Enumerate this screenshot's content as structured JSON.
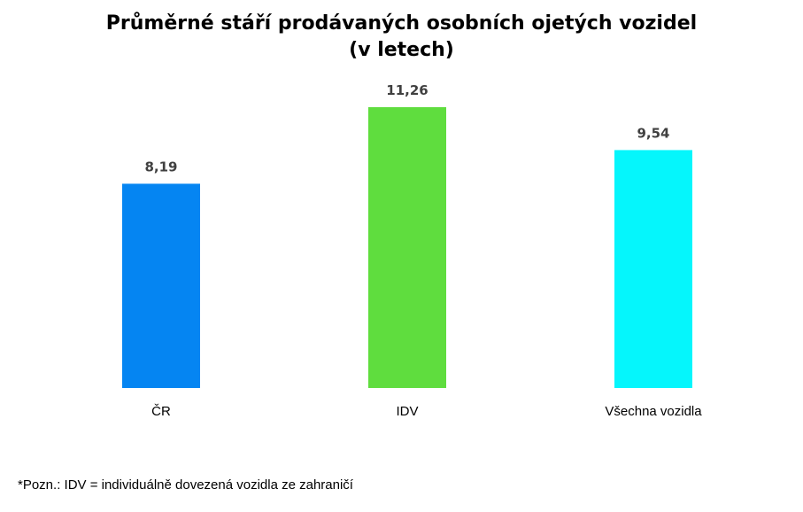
{
  "chart_data": {
    "type": "bar",
    "title": "Průměrné stáří prodávaných osobních ojetých vozidel",
    "subtitle": "(v letech)",
    "xlabel": "",
    "ylabel": "",
    "categories": [
      "ČR",
      "IDV",
      "Všechna vozidla"
    ],
    "values": [
      8.19,
      11.26,
      9.54
    ],
    "value_labels": [
      "8,19",
      "11,26",
      "9,54"
    ],
    "colors": [
      "#0585F2",
      "#5FDD3E",
      "#05F6FC"
    ],
    "ylim": [
      0,
      11.26
    ],
    "grid": false,
    "legend": "none"
  },
  "footnote": "*Pozn.: IDV = individuálně dovezená vozidla ze zahraničí"
}
